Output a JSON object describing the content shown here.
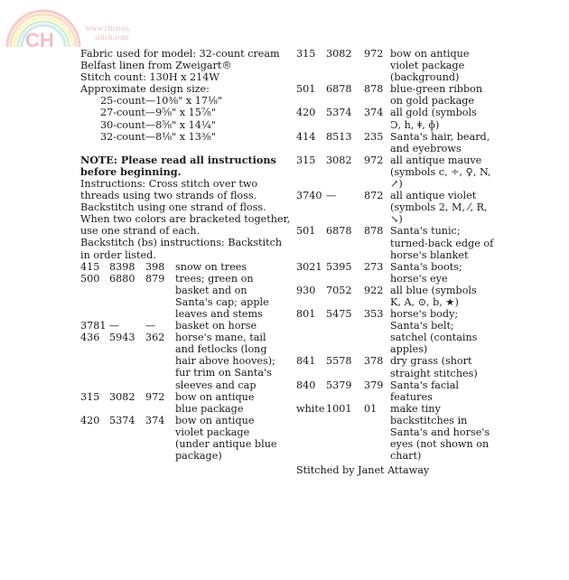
{
  "watermark": {
    "logo_text": "CH",
    "url_line1": "www.chcross",
    "url_line2": "stitch.com"
  },
  "intro": [
    "Fabric used for model: 32-count cream",
    "Belfast linen from Zweigart®",
    "Stitch count: 130H x 214W",
    "Approximate design size:"
  ],
  "sizes": [
    "25-count—10⅜\" x 17⅛\"",
    "27-count—9⅝\" x 15⅞\"",
    "30-count—8⅝\" x 14¼\"",
    "32-count—8⅛\" x 13⅜\""
  ],
  "note": [
    "NOTE: Please read all instructions",
    "before beginning."
  ],
  "instructions": [
    "Instructions: Cross stitch over two",
    "threads using two strands of floss.",
    "Backstitch using one strand of floss.",
    "When two colors are bracketed together,",
    "use one strand of each.",
    "Backstitch (bs) instructions: Backstitch",
    "in order listed."
  ],
  "left_rows": [
    {
      "a": "415",
      "b": "8398",
      "c": "398",
      "d": [
        "snow on trees"
      ]
    },
    {
      "a": "500",
      "b": "6880",
      "c": "879",
      "d": [
        "trees; green on",
        "basket and on",
        "Santa's cap; apple",
        "leaves and stems"
      ]
    },
    {
      "a": "3781",
      "b": "—",
      "c": "—",
      "d": [
        "basket on horse"
      ]
    },
    {
      "a": "436",
      "b": "5943",
      "c": "362",
      "d": [
        "horse's mane, tail",
        "and fetlocks (long",
        "hair above hooves);",
        "fur trim on Santa's",
        "sleeves and cap"
      ]
    },
    {
      "a": "315",
      "b": "3082",
      "c": "972",
      "d": [
        "bow on antique",
        "blue package"
      ]
    },
    {
      "a": "420",
      "b": "5374",
      "c": "374",
      "d": [
        "bow on antique",
        "violet package",
        "(under antique blue",
        "package)"
      ]
    }
  ],
  "right_rows": [
    {
      "a": "315",
      "b": "3082",
      "c": "972",
      "d": [
        "bow on antique",
        "violet package",
        "(background)"
      ]
    },
    {
      "a": "501",
      "b": "6878",
      "c": "878",
      "d": [
        "blue-green ribbon",
        "on gold package"
      ]
    },
    {
      "a": "420",
      "b": "5374",
      "c": "374",
      "d": [
        "all gold (symbols",
        "Ͻ, h, ǂ, ɸ)"
      ]
    },
    {
      "a": "414",
      "b": "8513",
      "c": "235",
      "d": [
        "Santa's hair, beard,",
        "and eyebrows"
      ]
    },
    {
      "a": "315",
      "b": "3082",
      "c": "972",
      "d": [
        "all antique mauve",
        "(symbols c, ÷, ♀, N,",
        "↗)"
      ]
    },
    {
      "a": "3740",
      "b": "—",
      "c": "872",
      "d": [
        "all antique violet",
        "(symbols 2, M, ⁄, R,",
        "↘)"
      ]
    },
    {
      "a": "501",
      "b": "6878",
      "c": "878",
      "d": [
        "Santa's tunic;",
        "turned-back edge of",
        "horse's blanket"
      ]
    },
    {
      "a": "3021",
      "b": "5395",
      "c": "273",
      "d": [
        "Santa's boots;",
        "horse's eye"
      ]
    },
    {
      "a": "930",
      "b": "7052",
      "c": "922",
      "d": [
        "all blue (symbols",
        "K, A, ⊙, b, ★)"
      ]
    },
    {
      "a": "801",
      "b": "5475",
      "c": "353",
      "d": [
        "horse's body;",
        "Santa's belt;",
        "satchel (contains",
        "apples)"
      ]
    },
    {
      "a": "841",
      "b": "5578",
      "c": "378",
      "d": [
        "dry grass (short",
        "straight stitches)"
      ]
    },
    {
      "a": "840",
      "b": "5379",
      "c": "379",
      "d": [
        "Santa's facial",
        "features"
      ]
    },
    {
      "a": "white",
      "b": "1001",
      "c": "01",
      "d": [
        "make tiny",
        "backstitches in",
        "Santa's and horse's",
        "eyes (not shown on",
        "chart)"
      ]
    }
  ],
  "credit": "Stitched by Janet Attaway"
}
